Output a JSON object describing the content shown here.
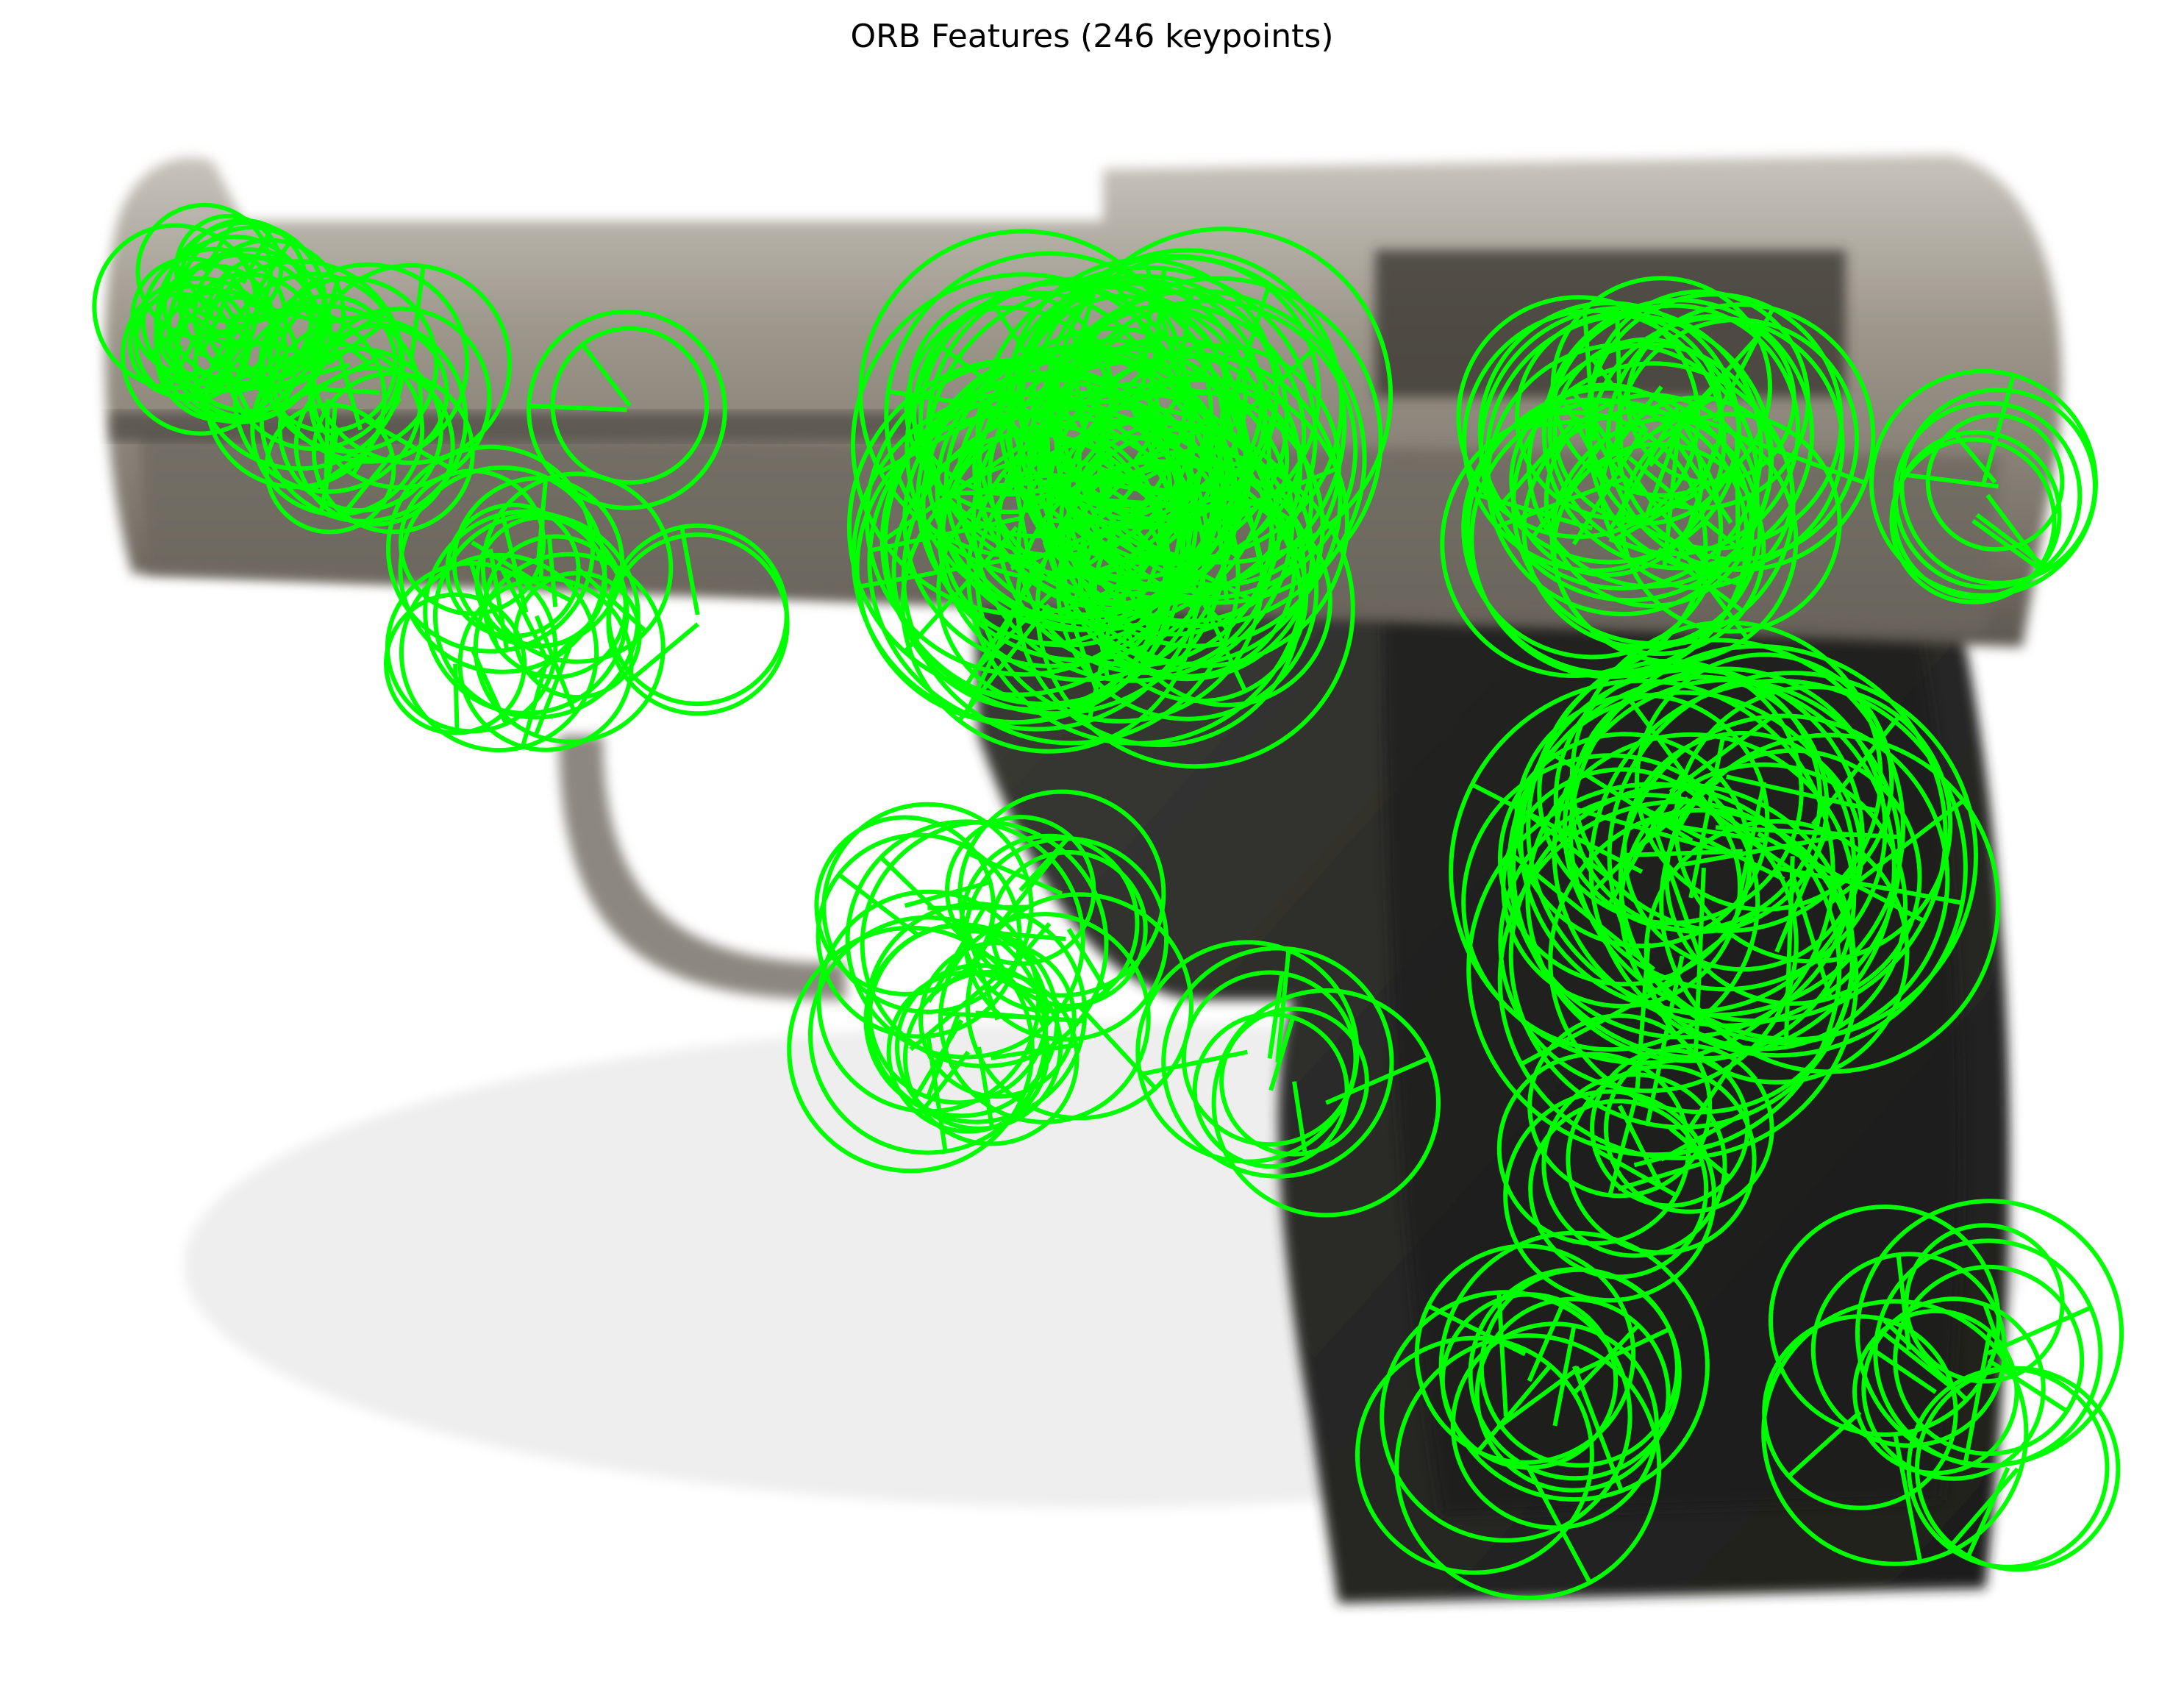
{
  "figure": {
    "title": "ORB Features (246 keypoints)"
  },
  "image": {
    "subject-icon": "pistol-photo",
    "keypoint_color": "#00ff00"
  }
}
